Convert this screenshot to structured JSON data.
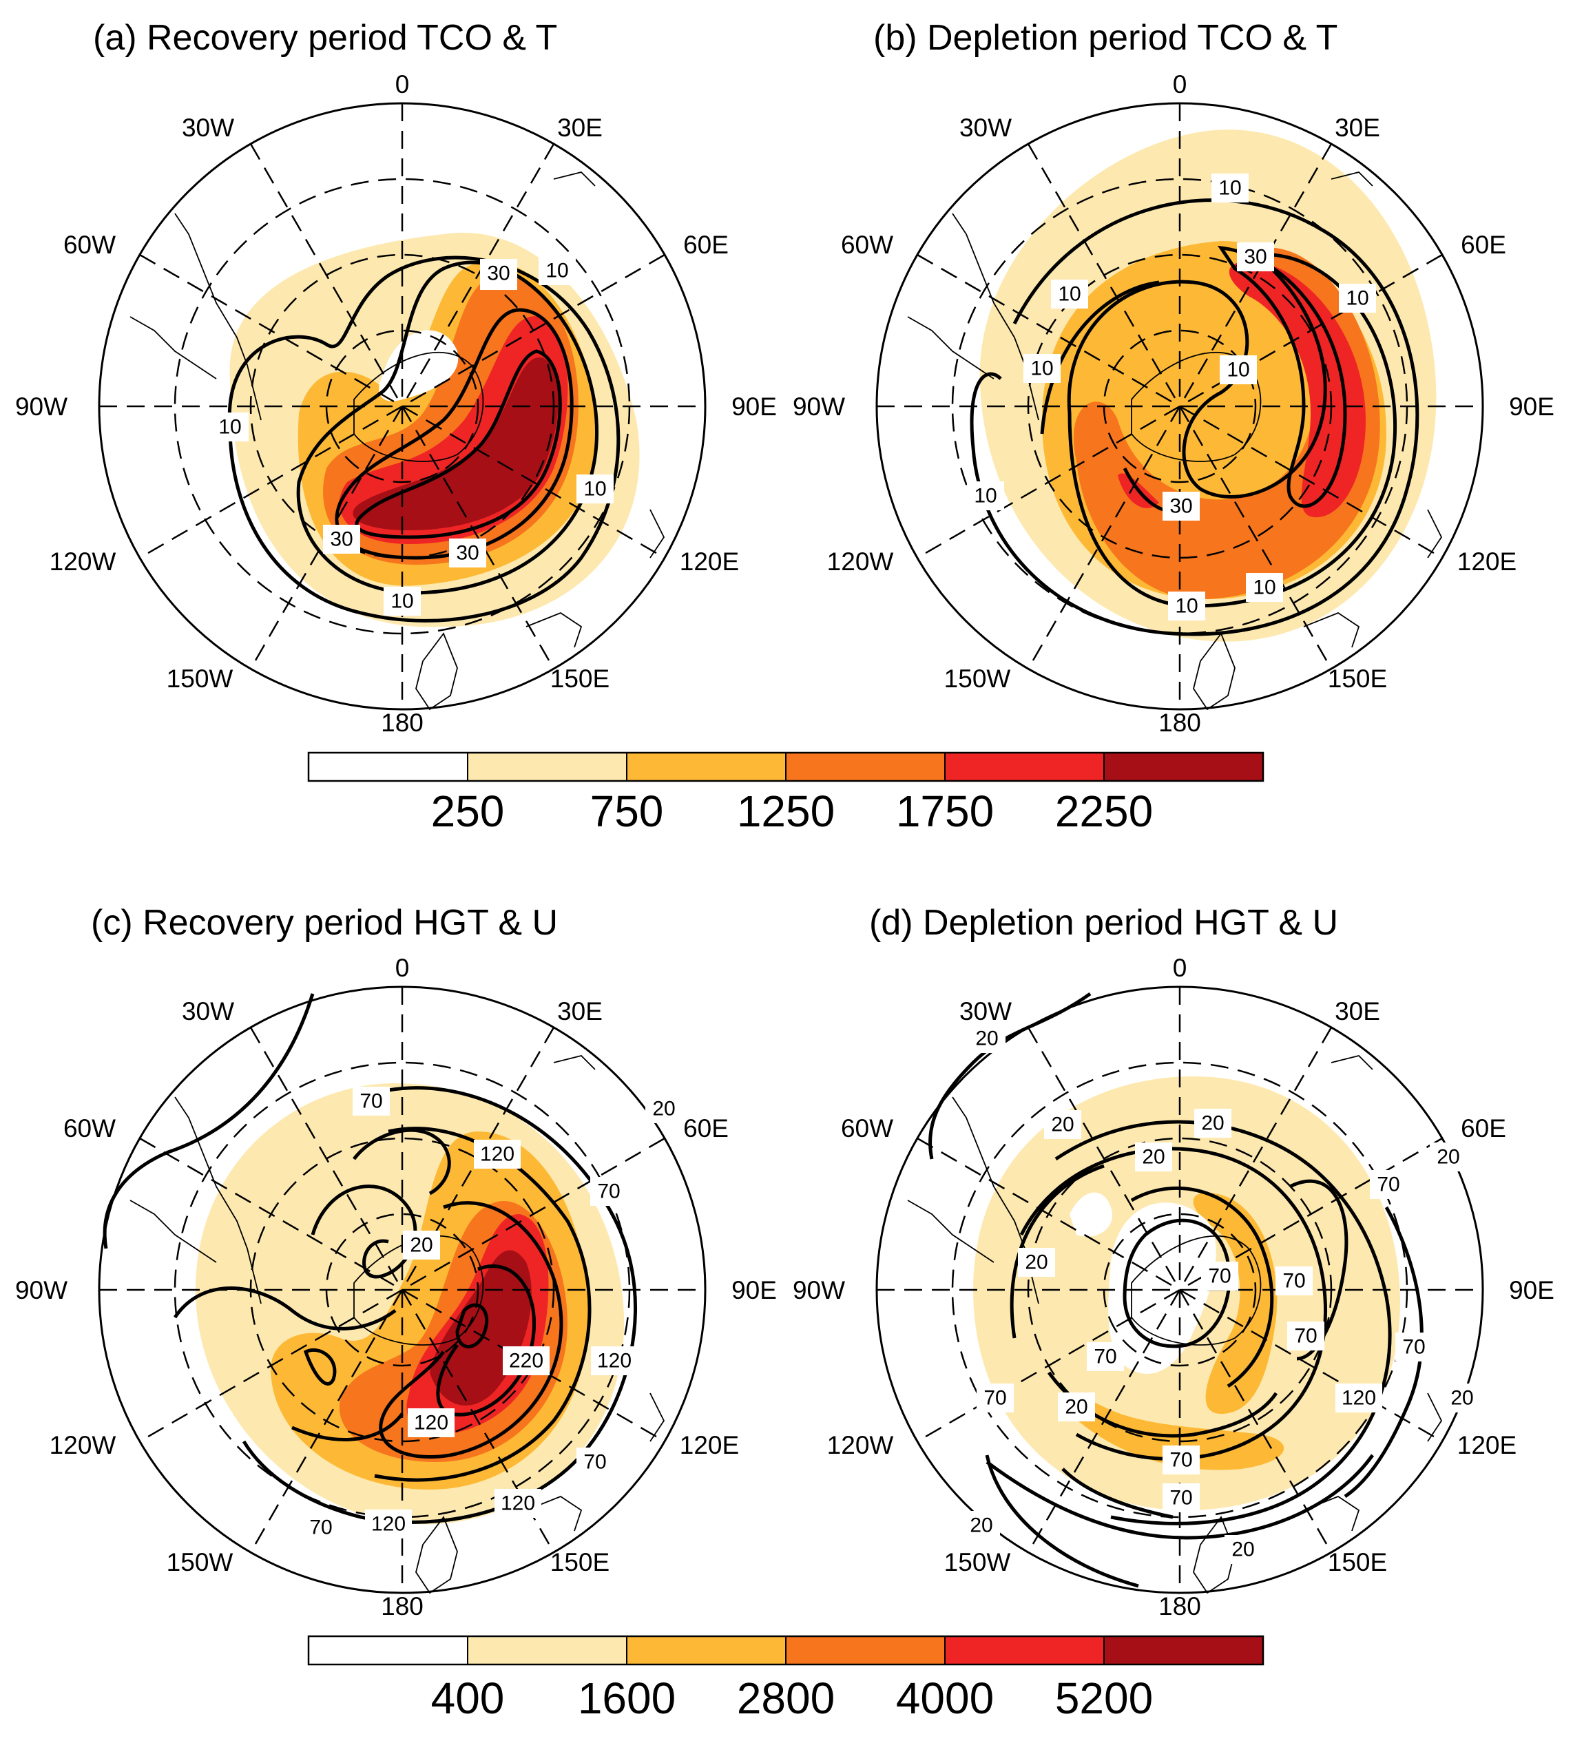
{
  "panels": [
    {
      "id": "a",
      "title": "(a) Recovery period TCO & T",
      "labels": [
        "10",
        "10",
        "30",
        "30",
        "10",
        "30",
        "30",
        "10",
        "10"
      ]
    },
    {
      "id": "b",
      "title": "(b) Depletion period TCO & T",
      "labels": [
        "10",
        "30",
        "10",
        "10",
        "10",
        "10",
        "10",
        "30",
        "10",
        "10"
      ]
    },
    {
      "id": "c",
      "title": "(c) Recovery period HGT & U",
      "labels": [
        "70",
        "120",
        "20",
        "70",
        "220",
        "120",
        "120",
        "70",
        "120",
        "70",
        "120",
        "20"
      ]
    },
    {
      "id": "d",
      "title": "(d) Depletion period HGT & U",
      "labels": [
        "20",
        "20",
        "20",
        "20",
        "20",
        "70",
        "20",
        "70",
        "70",
        "70",
        "70",
        "70",
        "120",
        "70",
        "20",
        "70",
        "70",
        "20",
        "20",
        "20"
      ]
    }
  ],
  "longitudes": [
    "0",
    "30E",
    "60E",
    "90E",
    "120E",
    "150E",
    "180",
    "150W",
    "120W",
    "90W",
    "60W",
    "30W"
  ],
  "colorbars": [
    {
      "ticks": [
        "250",
        "750",
        "1250",
        "1750",
        "2250"
      ]
    },
    {
      "ticks": [
        "400",
        "1600",
        "2800",
        "4000",
        "5200"
      ]
    }
  ],
  "palette": [
    "#ffffff",
    "#fde9b0",
    "#fdb935",
    "#f6751d",
    "#ee2524",
    "#a50f15"
  ]
}
